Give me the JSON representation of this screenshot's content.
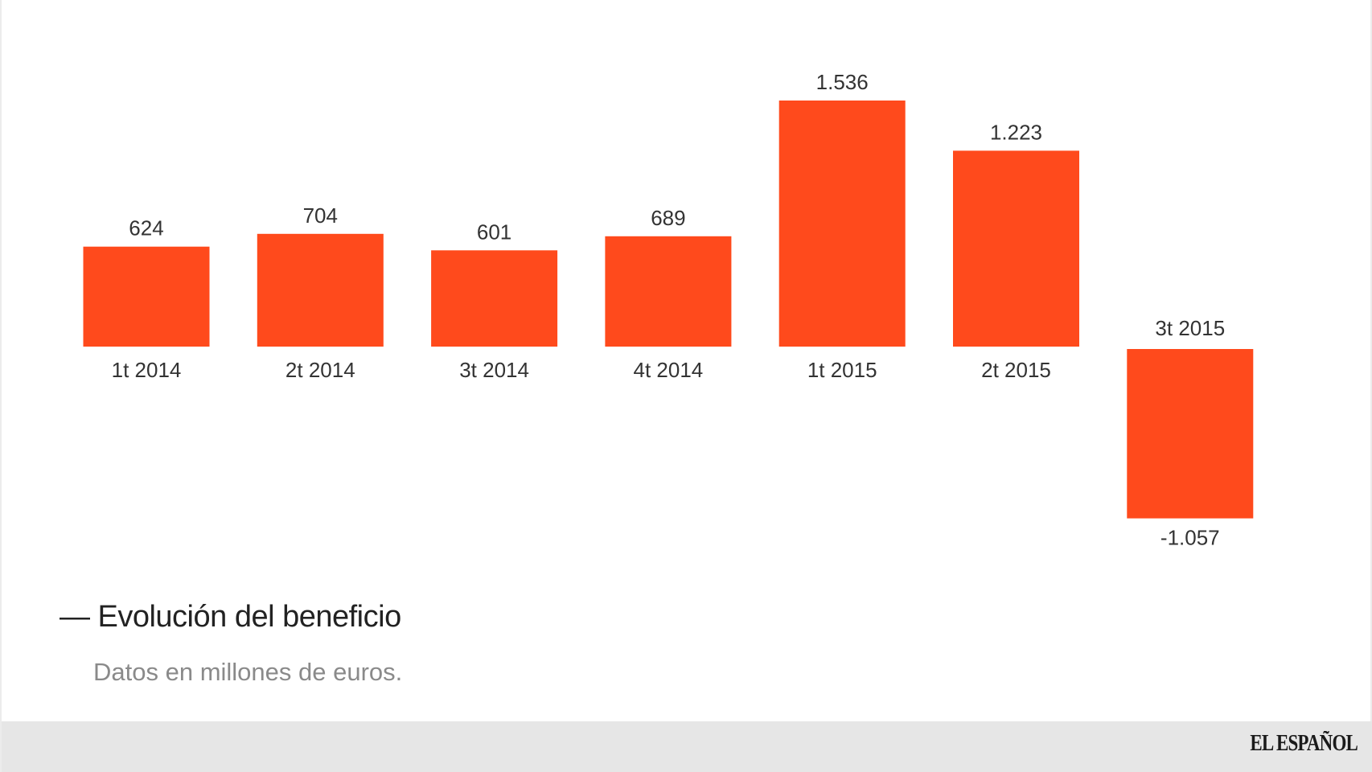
{
  "chart_data": {
    "type": "bar",
    "categories": [
      "1t 2014",
      "2t 2014",
      "3t 2014",
      "4t 2014",
      "1t 2015",
      "2t 2015",
      "3t 2015"
    ],
    "values": [
      624,
      704,
      601,
      689,
      1536,
      1223,
      -1057
    ],
    "value_labels": [
      "624",
      "704",
      "601",
      "689",
      "1.536",
      "1.223",
      "-1.057"
    ],
    "title": "Evolución del beneficio",
    "subtitle": "Datos en millones de euros.",
    "xlabel": "",
    "ylabel": "",
    "ylim": [
      -1057,
      1536
    ],
    "grid": false,
    "bar_color": "#ff4a1c"
  },
  "header": {
    "title_dash": "—",
    "title": "Evolución del beneficio",
    "subtitle": "Datos en millones de euros."
  },
  "footer": {
    "brand": "EL ESPAÑOL",
    "background": "#e6e6e6"
  }
}
